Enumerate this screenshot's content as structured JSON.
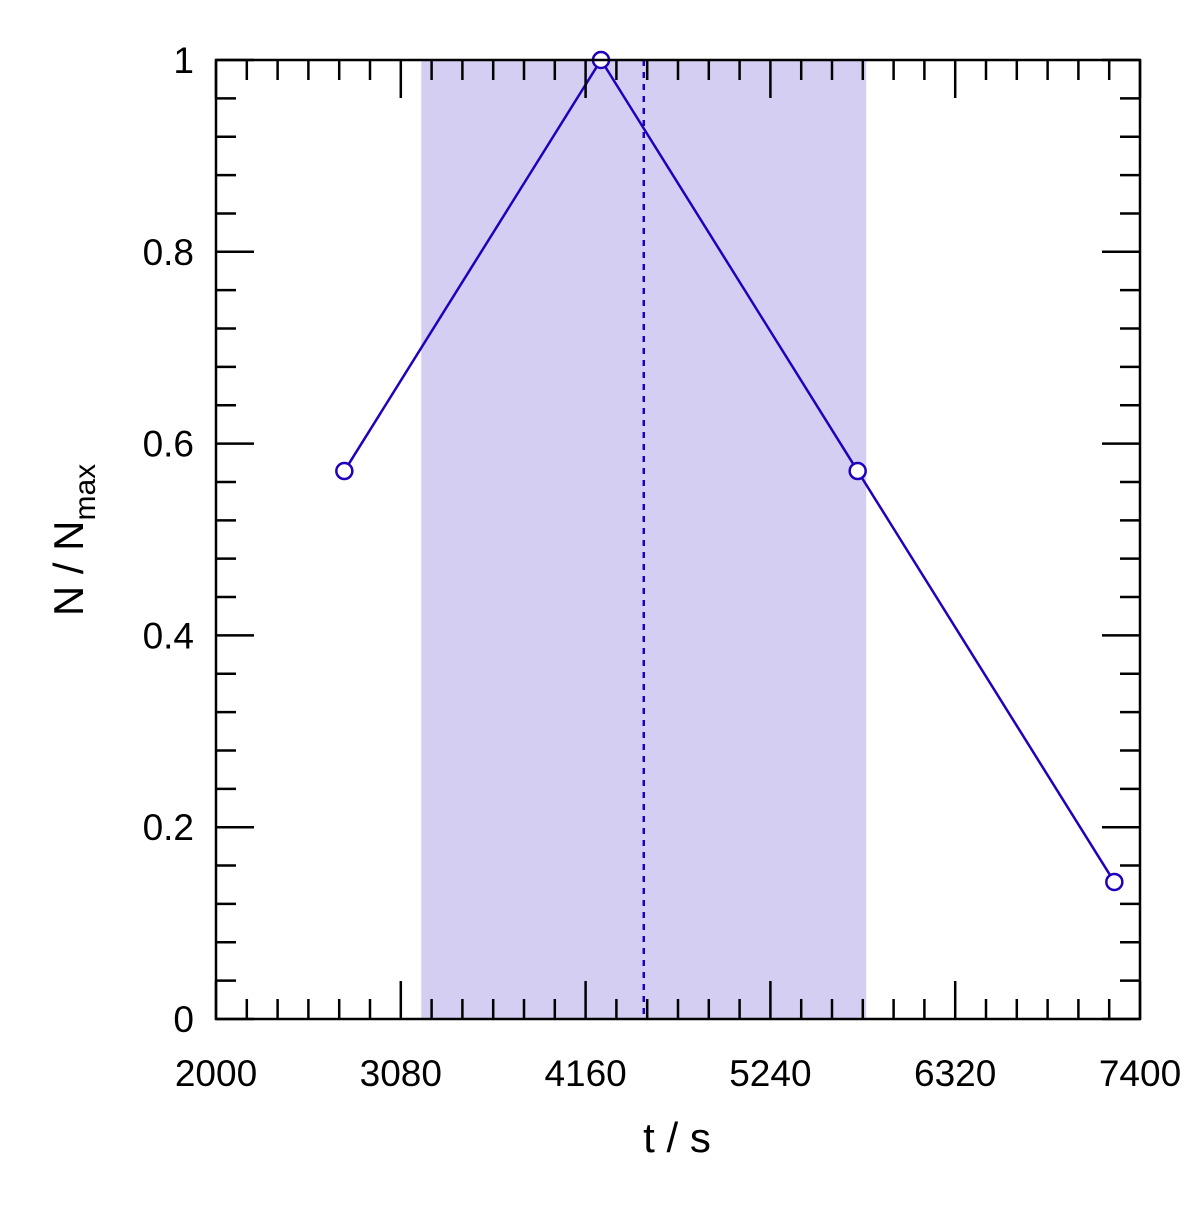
{
  "chart_data": {
    "type": "line",
    "x": [
      2750,
      4250,
      5750,
      7250
    ],
    "y": [
      0.5714,
      1.0,
      0.5714,
      0.1429
    ],
    "xlabel": "t / s",
    "ylabel": {
      "main": "N / N",
      "subscript": "max"
    },
    "xlim": [
      2000,
      7400
    ],
    "ylim": [
      0,
      1
    ],
    "xticks": [
      2000,
      3080,
      4160,
      5240,
      6320,
      7400
    ],
    "xtick_labels": [
      "2000",
      "3080",
      "4160",
      "5240",
      "6320",
      "7400"
    ],
    "yticks": [
      0,
      0.2,
      0.4,
      0.6,
      0.8,
      1
    ],
    "ytick_labels": [
      "0",
      "0.2",
      "0.4",
      "0.6",
      "0.8",
      "1"
    ],
    "shaded_band": {
      "x_start": 3200,
      "x_end": 5800
    },
    "reference_line": {
      "x": 4500,
      "style": "dashed"
    },
    "markers": "open-circle",
    "grid": false,
    "colors": {
      "series": "#2200bb",
      "band": "#d4cef2",
      "axes": "#000000"
    }
  }
}
